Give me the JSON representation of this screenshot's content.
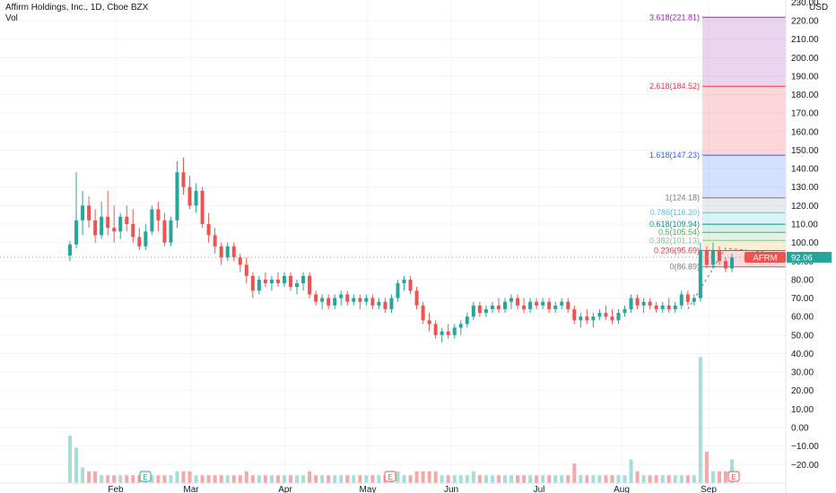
{
  "legend": {
    "title": "Affirm Holdings, Inc., 1D, Cboe BZX",
    "volume_label": "Vol"
  },
  "price_axis": {
    "currency": "USD",
    "top_partial_label": "230.00",
    "ticks": [
      "220.00",
      "210.00",
      "200.00",
      "190.00",
      "180.00",
      "170.00",
      "160.00",
      "150.00",
      "140.00",
      "130.00",
      "120.00",
      "110.00",
      "100.00",
      "90.00",
      "80.00",
      "70.00",
      "60.00",
      "50.00",
      "40.00",
      "30.00",
      "20.00",
      "10.00",
      "0.00",
      "−10.00",
      "−20.00"
    ]
  },
  "time_axis": {
    "labels": [
      "Feb",
      "Mar",
      "Apr",
      "May",
      "Jun",
      "Jul",
      "Aug",
      "Sep"
    ]
  },
  "ticker_tag": {
    "symbol": "AFRM",
    "price": "92.06"
  },
  "earnings_marker": "E",
  "colors": {
    "up": "#26a69a",
    "down": "#ef5350",
    "vol_up": "#a7ddd8",
    "vol_down": "#f5a8a8",
    "grid": "#f0f3fa",
    "tag_bg": "#ef5350",
    "tag_price_bg": "#26a69a"
  },
  "chart_data": {
    "type": "candlestick",
    "title": "Affirm Holdings, Inc., 1D, Cboe BZX",
    "ylim": [
      -25,
      232
    ],
    "volume_scale": "overlay",
    "fib_levels": [
      {
        "label": "0(86.89)",
        "ratio": 0,
        "price": 86.89,
        "color": "#787b86",
        "fill": "rgba(242,54,69,0.18)"
      },
      {
        "label": "0.236(95.69)",
        "ratio": 0.236,
        "price": 95.69,
        "color": "#f23645",
        "fill": "rgba(255,152,0,0.16)"
      },
      {
        "label": "0.382(101.13)",
        "ratio": 0.382,
        "price": 101.13,
        "color": "#81c784",
        "fill": "rgba(76,175,80,0.16)"
      },
      {
        "label": "0.5(105.54)",
        "ratio": 0.5,
        "price": 105.54,
        "color": "#4caf50",
        "fill": "rgba(8,153,129,0.16)"
      },
      {
        "label": "0.618(109.94)",
        "ratio": 0.618,
        "price": 109.94,
        "color": "#089981",
        "fill": "rgba(0,188,212,0.16)"
      },
      {
        "label": "0.786(116.20)",
        "ratio": 0.786,
        "price": 116.2,
        "color": "#64b5f6",
        "fill": "rgba(120,123,134,0.16)"
      },
      {
        "label": "1(124.18)",
        "ratio": 1,
        "price": 124.18,
        "color": "#787b86",
        "fill": "rgba(41,98,255,0.20)"
      },
      {
        "label": "1.618(147.23)",
        "ratio": 1.618,
        "price": 147.23,
        "color": "#2962ff",
        "fill": "rgba(242,54,69,0.20)"
      },
      {
        "label": "2.618(184.52)",
        "ratio": 2.618,
        "price": 184.52,
        "color": "#f23645",
        "fill": "rgba(156,39,176,0.20)"
      },
      {
        "label": "3.618(221.81)",
        "ratio": 3.618,
        "price": 221.81,
        "color": "#9c27b0",
        "fill": null
      }
    ],
    "candles": [
      [
        93,
        101,
        90,
        99,
        12
      ],
      [
        99,
        138,
        97,
        112,
        9
      ],
      [
        112,
        128,
        104,
        120,
        4
      ],
      [
        120,
        125,
        108,
        112,
        3
      ],
      [
        112,
        118,
        100,
        104,
        3
      ],
      [
        104,
        122,
        102,
        114,
        2
      ],
      [
        114,
        128,
        104,
        108,
        2
      ],
      [
        108,
        120,
        100,
        106,
        2
      ],
      [
        106,
        116,
        102,
        114,
        2
      ],
      [
        114,
        120,
        106,
        110,
        2
      ],
      [
        110,
        118,
        100,
        103,
        2
      ],
      [
        103,
        108,
        96,
        98,
        2
      ],
      [
        98,
        110,
        96,
        106,
        2
      ],
      [
        106,
        120,
        104,
        118,
        2
      ],
      [
        118,
        122,
        106,
        112,
        2
      ],
      [
        112,
        116,
        98,
        100,
        2
      ],
      [
        100,
        114,
        98,
        112,
        2
      ],
      [
        112,
        144,
        108,
        138,
        3
      ],
      [
        138,
        146,
        126,
        130,
        3
      ],
      [
        130,
        136,
        118,
        120,
        3
      ],
      [
        120,
        132,
        116,
        128,
        2
      ],
      [
        128,
        130,
        108,
        110,
        2
      ],
      [
        110,
        116,
        100,
        104,
        2
      ],
      [
        104,
        108,
        94,
        98,
        2
      ],
      [
        98,
        100,
        88,
        92,
        2
      ],
      [
        92,
        100,
        90,
        98,
        2
      ],
      [
        98,
        100,
        90,
        92,
        2
      ],
      [
        92,
        94,
        84,
        88,
        2
      ],
      [
        88,
        92,
        78,
        82,
        3
      ],
      [
        82,
        84,
        70,
        74,
        2
      ],
      [
        74,
        82,
        72,
        80,
        2
      ],
      [
        80,
        84,
        76,
        78,
        2
      ],
      [
        78,
        82,
        74,
        80,
        2
      ],
      [
        80,
        84,
        76,
        78,
        2
      ],
      [
        78,
        84,
        76,
        82,
        2
      ],
      [
        82,
        84,
        74,
        76,
        2
      ],
      [
        76,
        80,
        72,
        78,
        2
      ],
      [
        78,
        84,
        74,
        82,
        2
      ],
      [
        82,
        84,
        70,
        72,
        3
      ],
      [
        72,
        74,
        66,
        68,
        2
      ],
      [
        68,
        72,
        64,
        70,
        2
      ],
      [
        70,
        72,
        64,
        66,
        2
      ],
      [
        66,
        72,
        64,
        70,
        2
      ],
      [
        70,
        74,
        66,
        72,
        2
      ],
      [
        72,
        74,
        66,
        68,
        2
      ],
      [
        68,
        72,
        66,
        70,
        2
      ],
      [
        70,
        72,
        64,
        68,
        2
      ],
      [
        68,
        72,
        66,
        70,
        2
      ],
      [
        70,
        72,
        64,
        66,
        2
      ],
      [
        66,
        70,
        64,
        68,
        2
      ],
      [
        68,
        70,
        62,
        64,
        2
      ],
      [
        64,
        72,
        62,
        70,
        2
      ],
      [
        70,
        80,
        68,
        78,
        3
      ],
      [
        78,
        82,
        74,
        80,
        2
      ],
      [
        80,
        82,
        72,
        74,
        2
      ],
      [
        74,
        76,
        64,
        66,
        3
      ],
      [
        66,
        68,
        56,
        58,
        3
      ],
      [
        58,
        62,
        52,
        56,
        3
      ],
      [
        56,
        58,
        48,
        50,
        3
      ],
      [
        50,
        54,
        46,
        52,
        2
      ],
      [
        52,
        56,
        48,
        50,
        2
      ],
      [
        50,
        56,
        48,
        54,
        2
      ],
      [
        54,
        58,
        50,
        56,
        2
      ],
      [
        56,
        62,
        54,
        60,
        2
      ],
      [
        60,
        68,
        58,
        66,
        3
      ],
      [
        66,
        68,
        60,
        62,
        2
      ],
      [
        62,
        66,
        60,
        64,
        2
      ],
      [
        64,
        68,
        62,
        66,
        2
      ],
      [
        66,
        70,
        62,
        64,
        2
      ],
      [
        64,
        70,
        62,
        68,
        2
      ],
      [
        68,
        72,
        64,
        70,
        2
      ],
      [
        70,
        72,
        64,
        66,
        2
      ],
      [
        66,
        70,
        62,
        64,
        2
      ],
      [
        64,
        70,
        62,
        68,
        2
      ],
      [
        68,
        70,
        64,
        66,
        2
      ],
      [
        66,
        70,
        64,
        68,
        2
      ],
      [
        68,
        70,
        62,
        64,
        2
      ],
      [
        64,
        68,
        62,
        66,
        2
      ],
      [
        66,
        70,
        64,
        68,
        2
      ],
      [
        68,
        70,
        62,
        64,
        2
      ],
      [
        64,
        66,
        56,
        58,
        5
      ],
      [
        58,
        62,
        54,
        60,
        2
      ],
      [
        60,
        64,
        56,
        58,
        2
      ],
      [
        58,
        62,
        54,
        60,
        2
      ],
      [
        60,
        64,
        58,
        62,
        2
      ],
      [
        62,
        66,
        58,
        60,
        2
      ],
      [
        60,
        64,
        56,
        58,
        2
      ],
      [
        58,
        64,
        56,
        62,
        2
      ],
      [
        62,
        66,
        60,
        64,
        2
      ],
      [
        64,
        72,
        62,
        70,
        6
      ],
      [
        70,
        72,
        64,
        66,
        3
      ],
      [
        66,
        70,
        62,
        68,
        2
      ],
      [
        68,
        70,
        64,
        66,
        2
      ],
      [
        66,
        68,
        62,
        64,
        2
      ],
      [
        64,
        68,
        62,
        66,
        2
      ],
      [
        66,
        70,
        62,
        64,
        2
      ],
      [
        64,
        68,
        62,
        66,
        2
      ],
      [
        66,
        74,
        64,
        72,
        2
      ],
      [
        72,
        74,
        66,
        68,
        2
      ],
      [
        68,
        72,
        66,
        70,
        2
      ],
      [
        70,
        100,
        68,
        96,
        32
      ],
      [
        96,
        98,
        86,
        88,
        8
      ],
      [
        88,
        100,
        86,
        96,
        3
      ],
      [
        96,
        98,
        88,
        90,
        3
      ],
      [
        90,
        92,
        84,
        86,
        3
      ],
      [
        86,
        94,
        84,
        92,
        6
      ]
    ]
  }
}
